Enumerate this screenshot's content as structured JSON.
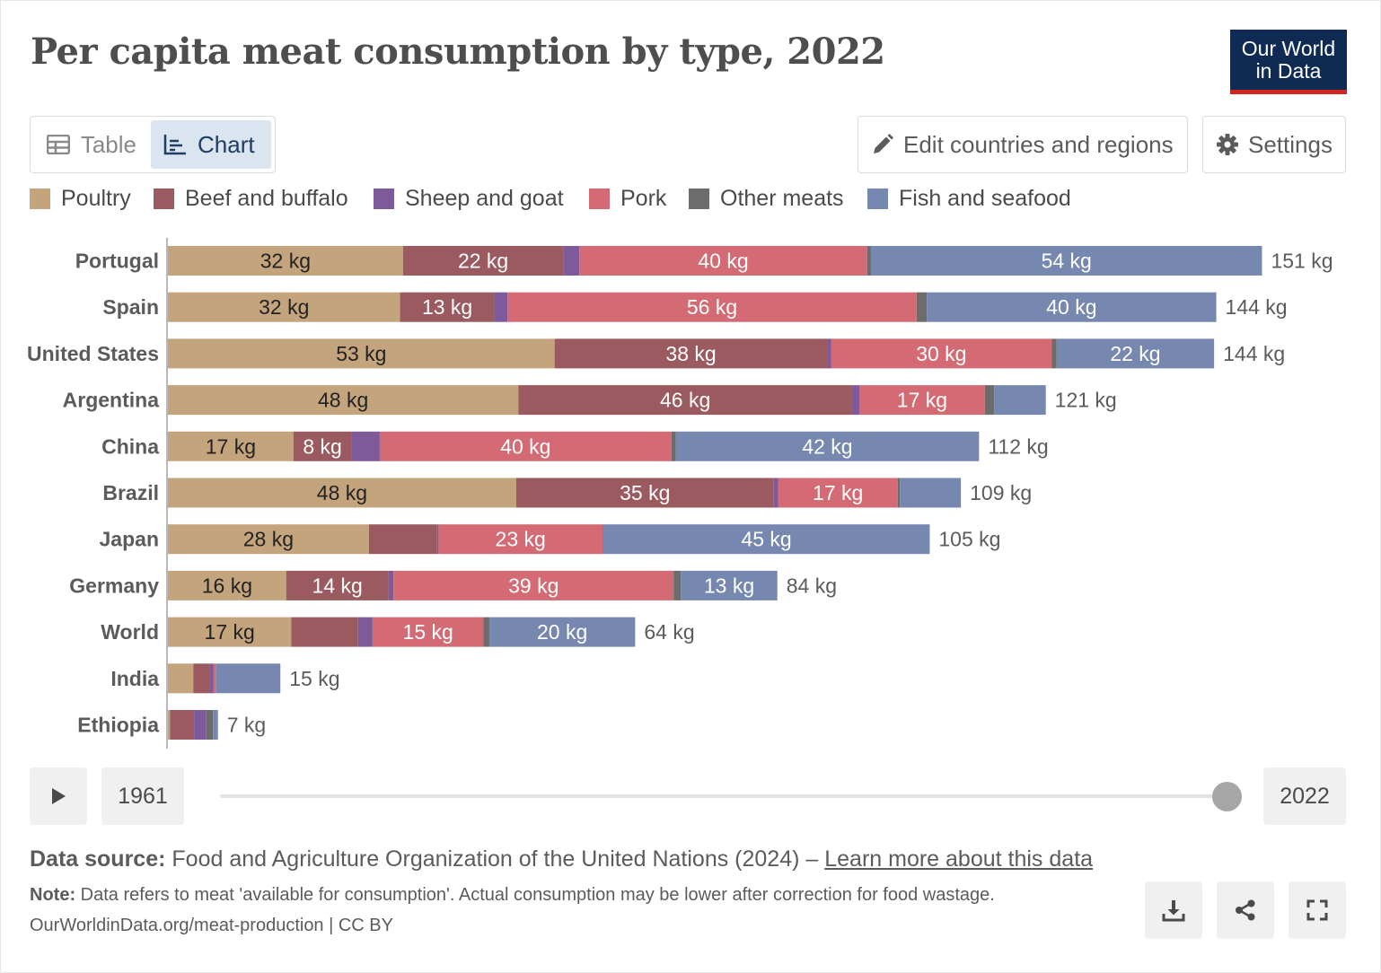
{
  "header": {
    "title": "Per capita meat consumption by type, 2022",
    "logo_line1": "Our World",
    "logo_line2": "in Data"
  },
  "tabs": [
    {
      "label": "Table",
      "icon": "table-icon"
    },
    {
      "label": "Chart",
      "icon": "chart-icon",
      "selected": true
    }
  ],
  "actions": {
    "edit_label": "Edit countries and regions",
    "settings_label": "Settings"
  },
  "colors": {
    "Poultry": "#c4a47c",
    "Beef and buffalo": "#9a5a5f",
    "Sheep and goat": "#7e5a9a",
    "Pork": "#d46a74",
    "Other meats": "#6c6c6c",
    "Fish and seafood": "#7688b0"
  },
  "chart_data": {
    "type": "bar",
    "orientation": "horizontal",
    "stacked": true,
    "unit": "kg",
    "legend_placement": "top",
    "series_order": [
      "Poultry",
      "Beef and buffalo",
      "Sheep and goat",
      "Pork",
      "Other meats",
      "Fish and seafood"
    ],
    "legend_labels": [
      "Poultry",
      "Beef and buffalo",
      "Sheep and goat",
      "Pork",
      "Other meats",
      "Fish and seafood"
    ],
    "rows": [
      {
        "category": "Portugal",
        "values": [
          32.4,
          22.1,
          2.2,
          39.7,
          0.5,
          53.9
        ],
        "total_label": "151 kg",
        "labels": [
          "32 kg",
          "22 kg",
          "",
          "40 kg",
          "",
          "54 kg"
        ]
      },
      {
        "category": "Spain",
        "values": [
          32.0,
          13.0,
          1.8,
          56.4,
          1.4,
          39.9
        ],
        "total_label": "144 kg",
        "labels": [
          "32 kg",
          "13 kg",
          "",
          "56 kg",
          "",
          "40 kg"
        ]
      },
      {
        "category": "United States",
        "values": [
          53.3,
          37.6,
          0.5,
          30.4,
          0.7,
          21.7
        ],
        "total_label": "144 kg",
        "labels": [
          "53 kg",
          "38 kg",
          "",
          "30 kg",
          "",
          "22 kg"
        ]
      },
      {
        "category": "Argentina",
        "values": [
          48.3,
          46.0,
          1.0,
          17.3,
          1.3,
          7.1
        ],
        "total_label": "121 kg",
        "labels": [
          "48 kg",
          "46 kg",
          "",
          "17 kg",
          "",
          ""
        ]
      },
      {
        "category": "China",
        "values": [
          17.3,
          8.0,
          3.9,
          40.2,
          0.6,
          41.8
        ],
        "total_label": "112 kg",
        "labels": [
          "17 kg",
          "8 kg",
          "",
          "40 kg",
          "",
          "42 kg"
        ]
      },
      {
        "category": "Brazil",
        "values": [
          48.0,
          35.5,
          0.6,
          16.5,
          0.3,
          8.4
        ],
        "total_label": "109 kg",
        "labels": [
          "48 kg",
          "35 kg",
          "",
          "17 kg",
          "",
          ""
        ]
      },
      {
        "category": "Japan",
        "values": [
          27.7,
          9.4,
          0.2,
          22.6,
          0.1,
          45.0
        ],
        "total_label": "105 kg",
        "labels": [
          "28 kg",
          "",
          "",
          "23 kg",
          "",
          "45 kg"
        ]
      },
      {
        "category": "Germany",
        "values": [
          16.3,
          14.1,
          0.7,
          38.6,
          1.0,
          13.3
        ],
        "total_label": "84 kg",
        "labels": [
          "16 kg",
          "14 kg",
          "",
          "39 kg",
          "",
          "13 kg"
        ]
      },
      {
        "category": "World",
        "values": [
          17.0,
          9.2,
          2.0,
          15.3,
          0.8,
          20.1
        ],
        "total_label": "64 kg",
        "labels": [
          "17 kg",
          "",
          "",
          "15 kg",
          "",
          "20 kg"
        ]
      },
      {
        "category": "India",
        "values": [
          3.5,
          2.2,
          0.6,
          0.3,
          0.0,
          8.9
        ],
        "total_label": "15 kg",
        "labels": [
          "",
          "",
          "",
          "",
          "",
          ""
        ]
      },
      {
        "category": "Ethiopia",
        "values": [
          0.3,
          3.3,
          1.7,
          0.0,
          0.9,
          0.7
        ],
        "total_label": "7 kg",
        "labels": [
          "",
          "",
          "",
          "",
          "",
          ""
        ]
      }
    ]
  },
  "timeline": {
    "start_year": "1961",
    "end_year": "2022",
    "position": 1.0
  },
  "footer": {
    "source_label": "Data source:",
    "source_text": "Food and Agriculture Organization of the United Nations (2024) –",
    "source_link": "Learn more about this data",
    "note_label": "Note:",
    "note_text": "Data refers to meat 'available for consumption'. Actual consumption may be lower after correction for food wastage.",
    "url_text": "OurWorldinData.org/meat-production | CC BY"
  }
}
